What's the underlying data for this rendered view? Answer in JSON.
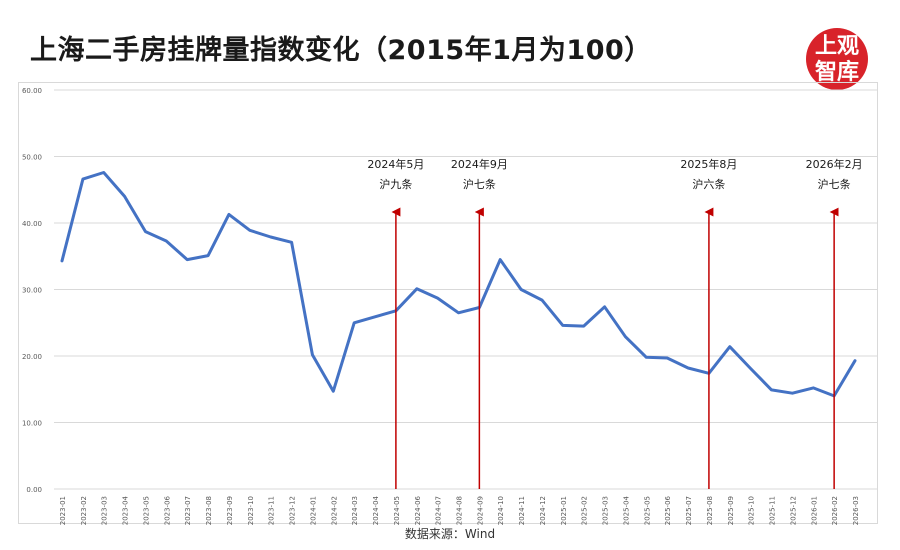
{
  "title": "上海二手房挂牌量指数变化（2015年1月为100）",
  "logo": {
    "line1": "上观",
    "line2": "智库",
    "color": "#d8232a"
  },
  "source": "数据来源：Wind",
  "chart_data": {
    "type": "line",
    "x": [
      "2023-01",
      "2023-02",
      "2023-03",
      "2023-04",
      "2023-05",
      "2023-06",
      "2023-07",
      "2023-08",
      "2023-09",
      "2023-10",
      "2023-11",
      "2023-12",
      "2024-01",
      "2024-02",
      "2024-03",
      "2024-04",
      "2024-05",
      "2024-06",
      "2024-07",
      "2024-08",
      "2024-09",
      "2024-10",
      "2024-11",
      "2024-12",
      "2025-01",
      "2025-02",
      "2025-03",
      "2025-04",
      "2025-05",
      "2025-06",
      "2025-07",
      "2025-08",
      "2025-09",
      "2025-10",
      "2025-11",
      "2025-12",
      "2026-01",
      "2026-02",
      "2026-03"
    ],
    "series": [
      {
        "name": "",
        "color": "#4472c4",
        "values": [
          34.3,
          46.6,
          47.6,
          44.0,
          38.7,
          37.3,
          34.5,
          35.1,
          41.3,
          38.9,
          37.9,
          37.1,
          20.2,
          14.7,
          25.0,
          25.9,
          26.8,
          30.1,
          28.7,
          26.5,
          27.3,
          34.5,
          30.0,
          28.4,
          24.6,
          24.5,
          27.4,
          22.9,
          19.8,
          19.7,
          18.2,
          17.4,
          21.4,
          18.1,
          14.9,
          14.4,
          15.2,
          14.0,
          19.3
        ]
      }
    ],
    "ylim": [
      0,
      60
    ],
    "yticks": [
      "0.00",
      "10.00",
      "20.00",
      "30.00",
      "40.00",
      "50.00",
      "60.00"
    ],
    "grid": true,
    "annotations": [
      {
        "x": "2024-05",
        "date": "2024年5月",
        "label": "沪九条",
        "color": "#c00000"
      },
      {
        "x": "2024-09",
        "date": "2024年9月",
        "label": "沪七条",
        "color": "#c00000"
      },
      {
        "x": "2025-08",
        "date": "2025年8月",
        "label": "沪六条",
        "color": "#c00000"
      },
      {
        "x": "2026-02",
        "date": "2026年2月",
        "label": "沪七条",
        "color": "#c00000"
      }
    ],
    "xlabel": "",
    "ylabel": ""
  }
}
